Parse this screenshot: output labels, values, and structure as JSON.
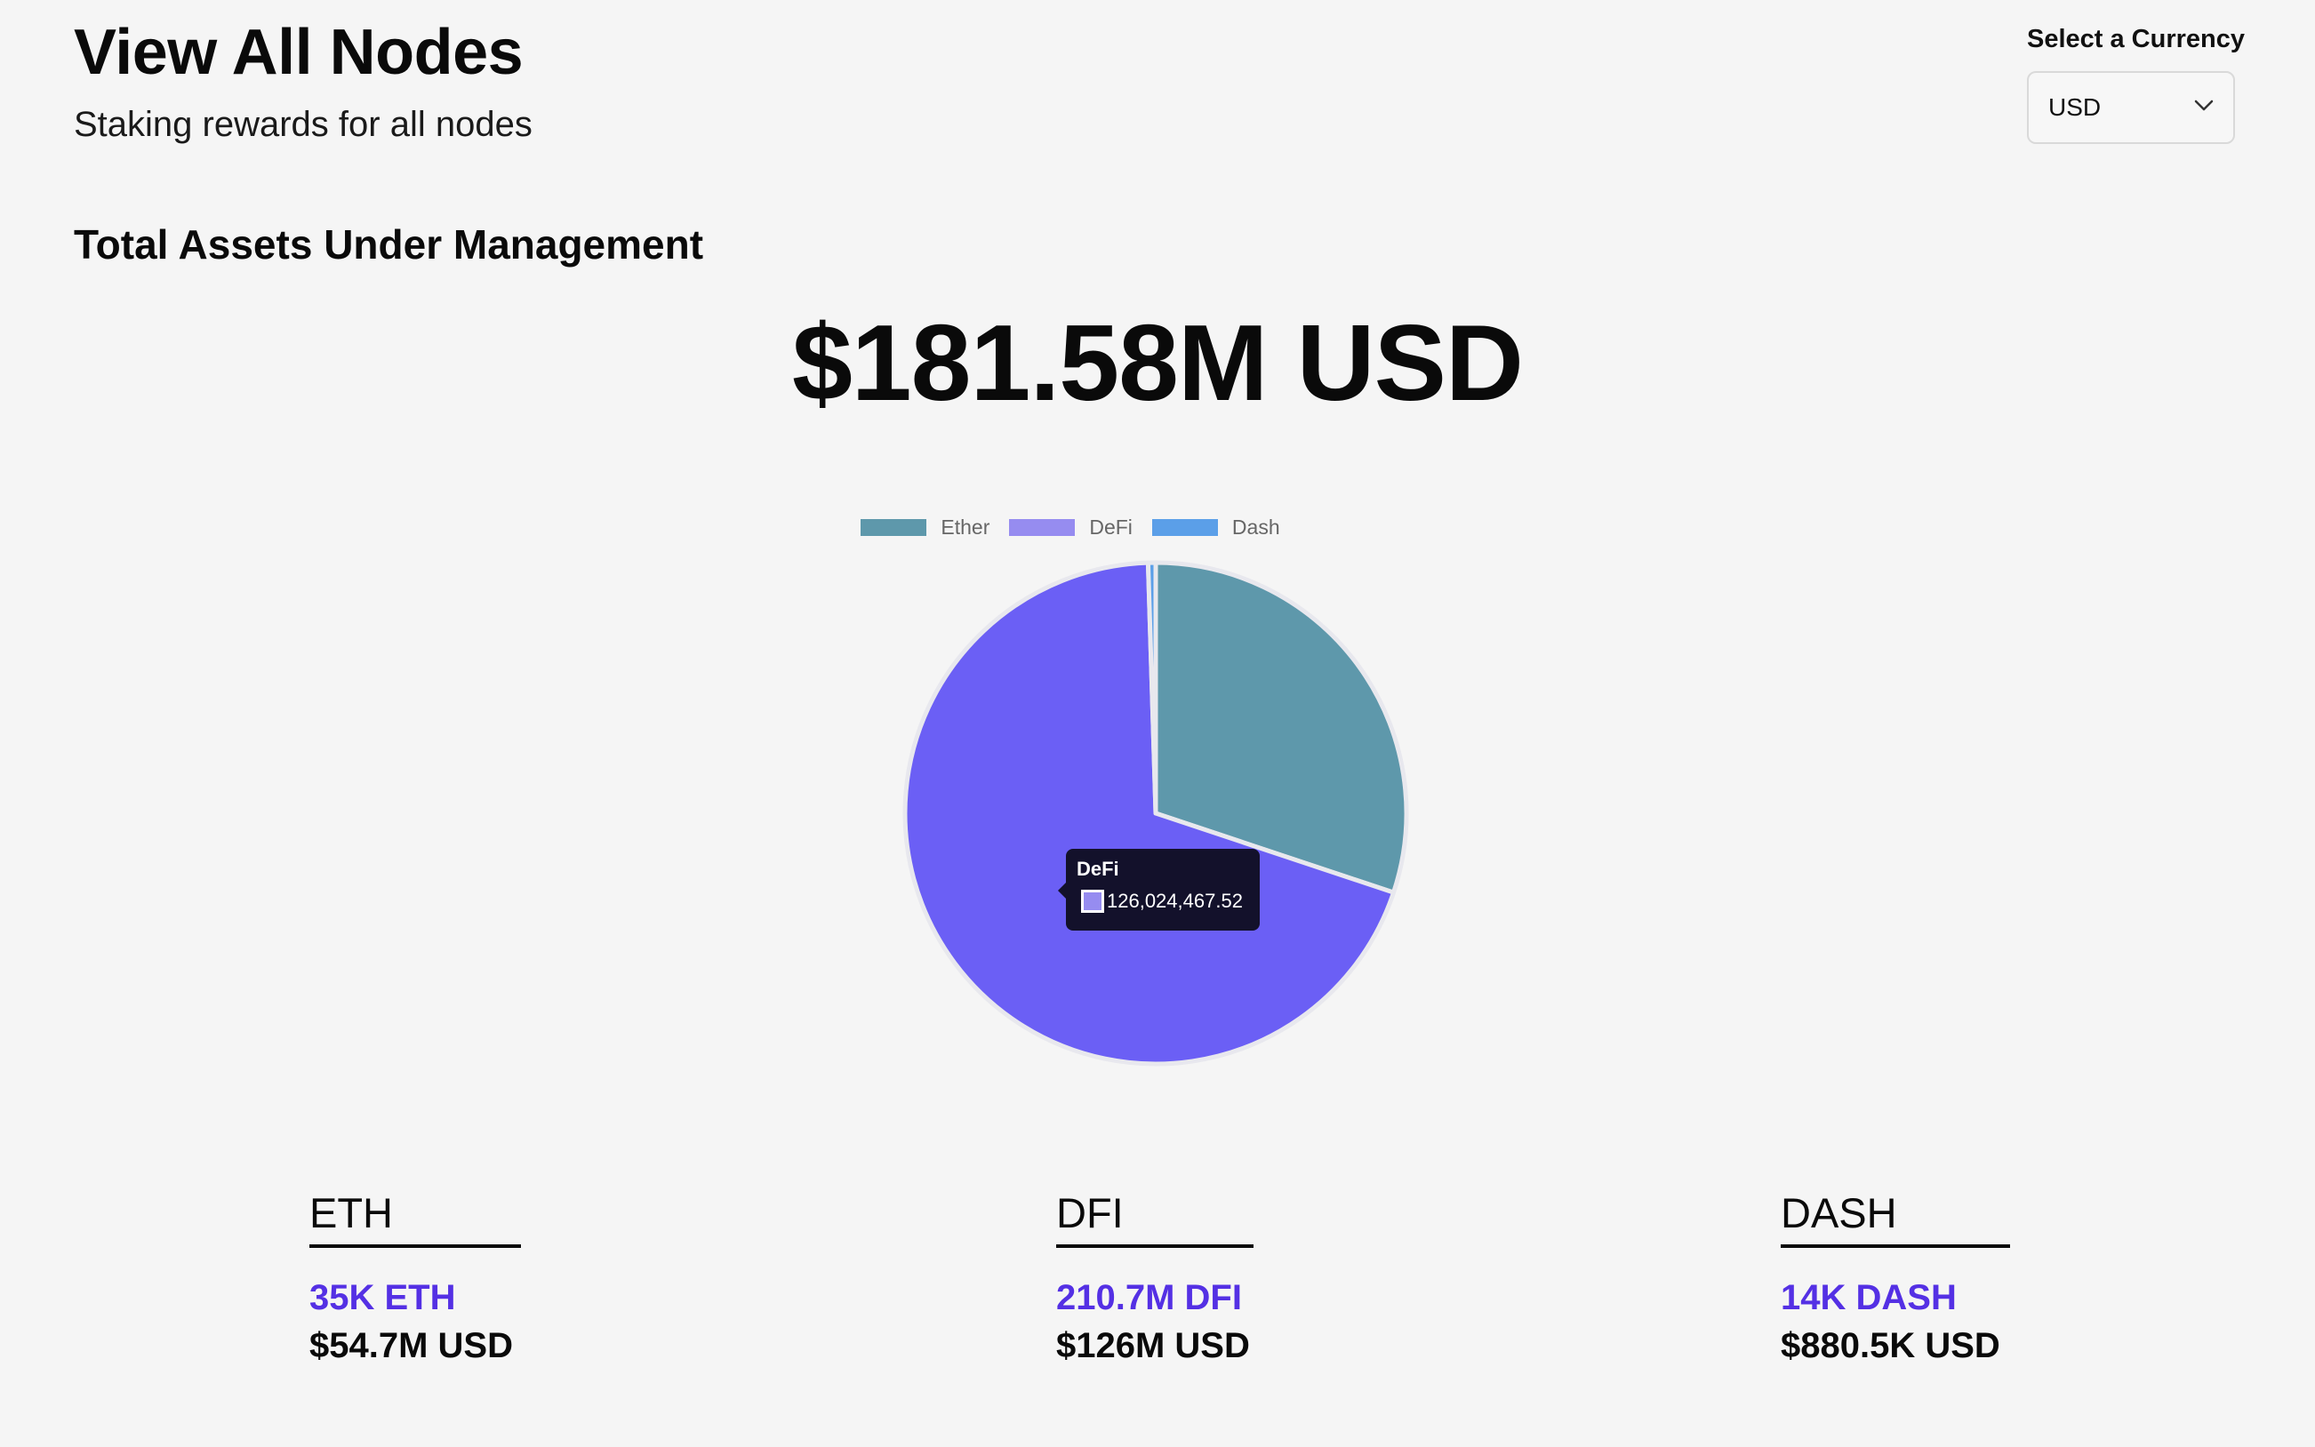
{
  "header": {
    "title": "View All Nodes",
    "subtitle": "Staking rewards for all nodes"
  },
  "currency": {
    "label": "Select a Currency",
    "selected": "USD",
    "icon": "chevron-down-icon"
  },
  "aum": {
    "section_title": "Total Assets Under Management",
    "total": "$181.58M USD"
  },
  "chart_data": {
    "type": "pie",
    "categories": [
      "Ether",
      "DeFi",
      "Dash"
    ],
    "values": [
      54700000,
      126024467.52,
      880500
    ],
    "colors": [
      "#5e98ab",
      "#6b5ff5",
      "#5b9fe8"
    ],
    "legend_colors": [
      "#5e98ab",
      "#968cf0",
      "#5b9fe8"
    ],
    "legend_position": "top",
    "tooltip": {
      "label": "DeFi",
      "value": "126,024,467.52",
      "swatch_color": "#968cf0"
    }
  },
  "stats": [
    {
      "symbol": "ETH",
      "amount": "35K ETH",
      "usd": "$54.7M USD"
    },
    {
      "symbol": "DFI",
      "amount": "210.7M DFI",
      "usd": "$126M USD"
    },
    {
      "symbol": "DASH",
      "amount": "14K DASH",
      "usd": "$880.5K USD"
    }
  ],
  "colors": {
    "background": "#f5f5f5",
    "accent": "#5430e4",
    "tooltip_bg": "#13112b"
  }
}
